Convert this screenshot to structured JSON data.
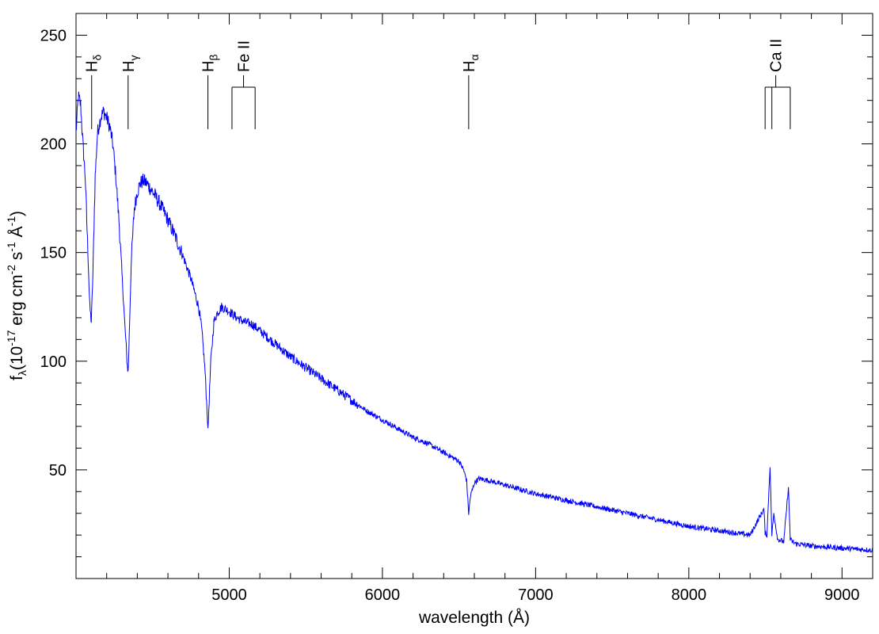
{
  "chart_data": {
    "type": "line",
    "xlabel": "wavelength (Å)",
    "ylabel": {
      "main": "f",
      "sub": "λ",
      "unit_prefix": "(10",
      "exp1": "-17",
      "mid1": " erg cm",
      "exp2": "-2",
      "mid2": " s",
      "exp3": "-1",
      "mid3": " Å",
      "exp4": "-1",
      "suffix": ")"
    },
    "xlim": [
      4000,
      9200
    ],
    "ylim": [
      0,
      260
    ],
    "xticks": [
      {
        "value": 5000,
        "label": "5000"
      },
      {
        "value": 6000,
        "label": "6000"
      },
      {
        "value": 7000,
        "label": "7000"
      },
      {
        "value": 8000,
        "label": "8000"
      },
      {
        "value": 9000,
        "label": "9000"
      }
    ],
    "yticks": [
      {
        "value": 50,
        "label": "50"
      },
      {
        "value": 100,
        "label": "100"
      },
      {
        "value": 150,
        "label": "150"
      },
      {
        "value": 200,
        "label": "200"
      },
      {
        "value": 250,
        "label": "250"
      }
    ],
    "line_color": "#0000ff",
    "series": [
      {
        "x": [
          4000,
          4015,
          4030,
          4045,
          4060,
          4075,
          4090,
          4100,
          4110,
          4125,
          4140,
          4160,
          4180,
          4200,
          4220,
          4240,
          4260,
          4280,
          4300,
          4320,
          4335,
          4340,
          4345,
          4360,
          4380,
          4400,
          4420,
          4440,
          4460,
          4480,
          4500,
          4550,
          4600,
          4650,
          4700,
          4750,
          4800,
          4820,
          4840,
          4855,
          4861,
          4867,
          4880,
          4900,
          4920,
          4950,
          5000,
          5050,
          5100,
          5150,
          5200,
          5300,
          5400,
          5500,
          5600,
          5700,
          5800,
          5900,
          6000,
          6100,
          6200,
          6300,
          6400,
          6450,
          6500,
          6530,
          6550,
          6563,
          6575,
          6600,
          6630,
          6700,
          6800,
          7000,
          7200,
          7400,
          7600,
          7800,
          8000,
          8200,
          8400,
          8490,
          8498,
          8510,
          8530,
          8542,
          8555,
          8580,
          8620,
          8650,
          8662,
          8675,
          8700,
          8800,
          9000,
          9200
        ],
        "y": [
          205,
          222,
          218,
          200,
          185,
          155,
          125,
          118,
          140,
          185,
          205,
          212,
          215,
          212,
          208,
          200,
          185,
          165,
          140,
          115,
          98,
          95,
          105,
          145,
          170,
          178,
          182,
          183,
          182,
          180,
          178,
          172,
          165,
          157,
          148,
          138,
          125,
          115,
          98,
          78,
          68,
          78,
          100,
          118,
          122,
          125,
          123,
          120,
          118,
          117,
          114,
          108,
          102,
          97,
          92,
          87,
          82,
          77,
          73,
          69,
          65,
          62,
          58,
          56,
          54,
          50,
          45,
          30,
          38,
          44,
          46,
          45,
          43,
          39,
          36,
          33,
          30,
          27,
          24,
          22,
          20,
          32,
          21,
          20,
          52,
          20,
          30,
          18,
          17,
          42,
          18,
          17,
          16,
          15,
          14,
          13
        ]
      }
    ],
    "annotations": [
      {
        "name": "H",
        "sub": "δ",
        "lines": [
          4102
        ]
      },
      {
        "name": "H",
        "sub": "γ",
        "lines": [
          4340
        ]
      },
      {
        "name": "H",
        "sub": "β",
        "lines": [
          4861
        ]
      },
      {
        "name": "Fe II",
        "sub": "",
        "lines": [
          5018,
          5169
        ]
      },
      {
        "name": "H",
        "sub": "α",
        "lines": [
          6563
        ]
      },
      {
        "name": "Ca II",
        "sub": "",
        "lines": [
          8498,
          8542,
          8662
        ]
      }
    ]
  }
}
